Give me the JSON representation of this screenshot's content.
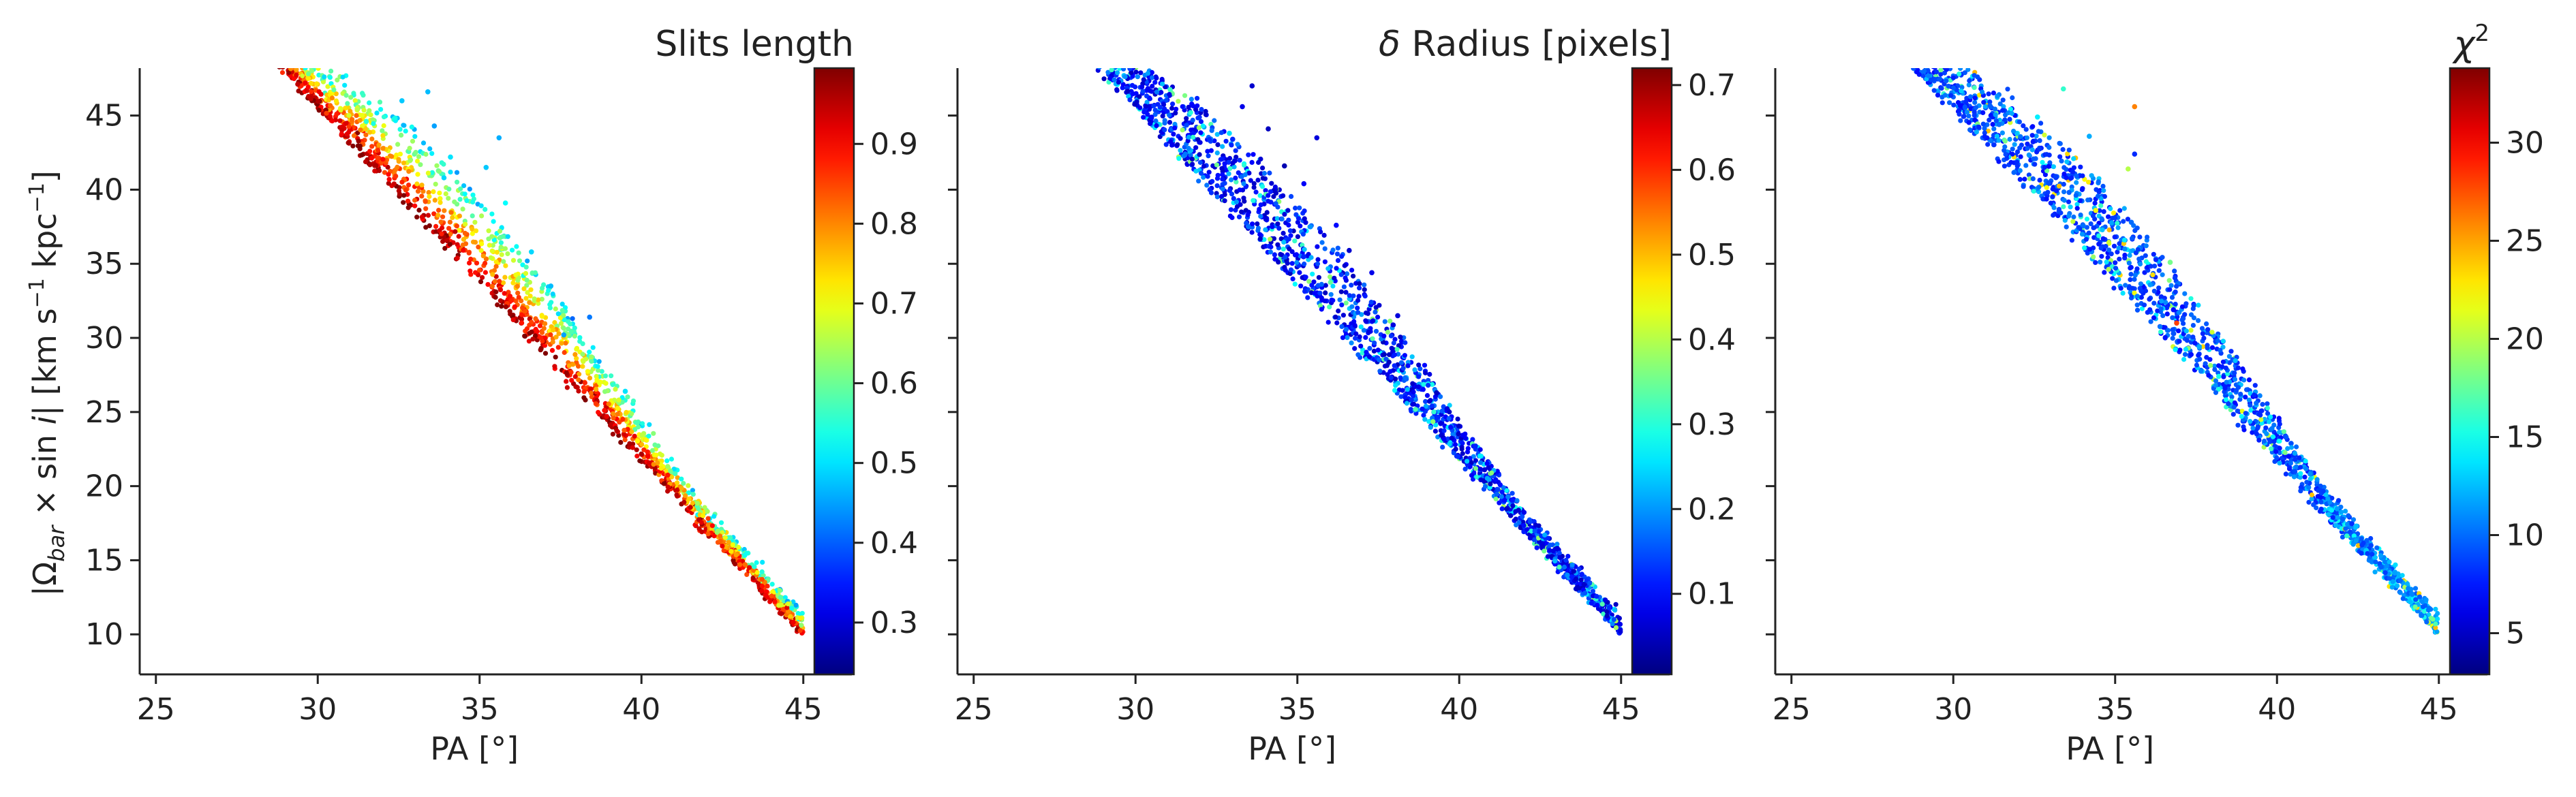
{
  "chart_data": [
    {
      "type": "scatter",
      "panel": "left",
      "xlabel": "PA [°]",
      "ylabel_parts": [
        "|Ω",
        "bar",
        " × sin ",
        "i",
        "|  [km s",
        "−1",
        " kpc",
        "−1",
        "]"
      ],
      "xticks": [
        "25",
        "30",
        "35",
        "40",
        "45"
      ],
      "yticks": [
        "10",
        "15",
        "20",
        "25",
        "30",
        "35",
        "40",
        "45"
      ],
      "xlim": [
        24.5,
        46.5
      ],
      "ylim": [
        7.3,
        48.2
      ],
      "trend": {
        "x_start": 28.6,
        "x_end": 45.0
      },
      "colorbar": {
        "title": "Slits length",
        "title_parts": [
          {
            "t": "Slits length",
            "s": "normal"
          }
        ],
        "range": [
          0.235,
          0.995
        ],
        "ticks": [
          "0.3",
          "0.4",
          "0.5",
          "0.6",
          "0.7",
          "0.8",
          "0.9"
        ],
        "colormap": "jet"
      },
      "color_rule": "band",
      "sparse_points": [
        [
          32.6,
          46.0
        ],
        [
          33.4,
          46.6
        ],
        [
          33.6,
          44.3
        ],
        [
          35.6,
          43.5
        ],
        [
          34.1,
          42.2
        ],
        [
          35.2,
          41.5
        ],
        [
          35.8,
          39.1
        ],
        [
          36.6,
          35.8
        ],
        [
          37.2,
          33.5
        ],
        [
          38.4,
          31.4
        ],
        [
          37.6,
          30.2
        ],
        [
          39.5,
          26.4
        ],
        [
          31.5,
          44.6
        ],
        [
          33.9,
          40.8
        ]
      ],
      "sparse_values": [
        0.48,
        0.47,
        0.45,
        0.46,
        0.5,
        0.48,
        0.52,
        0.49,
        0.47,
        0.42,
        0.45,
        0.5,
        0.55,
        0.49
      ]
    },
    {
      "type": "scatter",
      "panel": "middle",
      "xlabel": "PA [°]",
      "xticks": [
        "25",
        "30",
        "35",
        "40",
        "45"
      ],
      "xlim": [
        24.5,
        46.5
      ],
      "ylim": [
        7.3,
        48.2
      ],
      "trend": {
        "x_start": 28.6,
        "x_end": 45.0
      },
      "colorbar": {
        "title": "δ Radius [pixels]",
        "title_parts": [
          {
            "t": "δ",
            "s": "italic"
          },
          {
            "t": " Radius [pixels]",
            "s": "normal"
          }
        ],
        "range": [
          0.005,
          0.72
        ],
        "ticks": [
          "0.1",
          "0.2",
          "0.3",
          "0.4",
          "0.5",
          "0.6",
          "0.7"
        ],
        "colormap": "jet"
      },
      "color_rule": "low",
      "sparse_points": [
        [
          33.6,
          47.0
        ],
        [
          33.3,
          45.6
        ],
        [
          34.1,
          44.1
        ],
        [
          35.6,
          43.5
        ],
        [
          33.0,
          43.4
        ],
        [
          34.6,
          41.6
        ],
        [
          35.2,
          40.4
        ],
        [
          36.2,
          37.6
        ],
        [
          36.6,
          35.9
        ],
        [
          37.3,
          34.4
        ],
        [
          38.1,
          31.5
        ],
        [
          39.3,
          26.3
        ],
        [
          31.7,
          45.2
        ],
        [
          32.9,
          43.8
        ]
      ],
      "sparse_values": [
        0.06,
        0.08,
        0.05,
        0.07,
        0.12,
        0.04,
        0.09,
        0.1,
        0.06,
        0.08,
        0.07,
        0.05,
        0.3,
        0.25
      ]
    },
    {
      "type": "scatter",
      "panel": "right",
      "xlabel": "PA [°]",
      "xticks": [
        "25",
        "30",
        "35",
        "40",
        "45"
      ],
      "xlim": [
        24.5,
        46.5
      ],
      "ylim": [
        7.3,
        48.2
      ],
      "trend": {
        "x_start": 28.6,
        "x_end": 45.0
      },
      "colorbar": {
        "title": "χ2",
        "title_parts": [
          {
            "t": "χ",
            "s": "italic"
          },
          {
            "t": "2",
            "s": "sup"
          }
        ],
        "range": [
          2.9,
          33.8
        ],
        "ticks": [
          "5",
          "10",
          "15",
          "20",
          "25",
          "30"
        ],
        "colormap": "jet"
      },
      "color_rule": "mid",
      "sparse_points": [
        [
          33.4,
          46.8
        ],
        [
          32.6,
          44.9
        ],
        [
          34.2,
          43.6
        ],
        [
          35.6,
          42.4
        ],
        [
          35.4,
          41.4
        ],
        [
          35.5,
          37.8
        ],
        [
          36.7,
          35.1
        ],
        [
          36.8,
          31.9
        ],
        [
          37.6,
          29.4
        ],
        [
          38.2,
          27.4
        ],
        [
          35.6,
          45.6
        ],
        [
          34.4,
          38.6
        ],
        [
          36.9,
          31.0
        ],
        [
          35.3,
          36.0
        ]
      ],
      "sparse_values": [
        16,
        14,
        12,
        8,
        20,
        10,
        18,
        7,
        12,
        15,
        26,
        22,
        28,
        11
      ]
    }
  ]
}
